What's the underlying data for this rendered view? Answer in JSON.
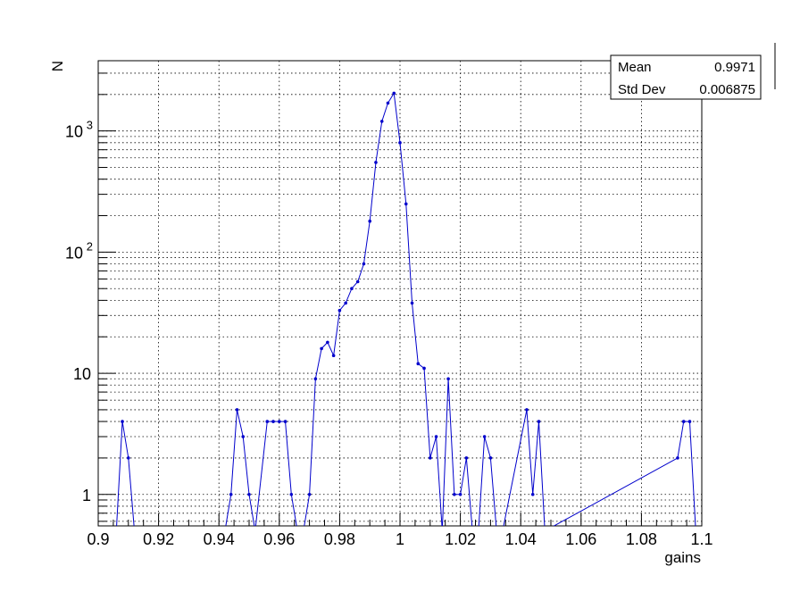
{
  "chart_data": {
    "type": "line",
    "title": "",
    "xlabel": "gains",
    "ylabel": "N",
    "xlim": [
      0.9,
      1.1
    ],
    "ylim": [
      0.55,
      3800
    ],
    "log_y": true,
    "grid": true,
    "x_ticks": [
      "0.9",
      "0.92",
      "0.94",
      "0.96",
      "0.98",
      "1",
      "1.02",
      "1.04",
      "1.06",
      "1.08",
      "1.1"
    ],
    "y_ticks": [
      {
        "value": 1,
        "label": "1"
      },
      {
        "value": 10,
        "label": "10"
      },
      {
        "value": 100,
        "label": "10",
        "exp": "2"
      },
      {
        "value": 1000,
        "label": "10",
        "exp": "3"
      }
    ],
    "series": [
      {
        "color": "#0000cc",
        "x": [
          0.906,
          0.908,
          0.91,
          0.912,
          0.942,
          0.944,
          0.946,
          0.948,
          0.95,
          0.952,
          0.956,
          0.958,
          0.96,
          0.962,
          0.964,
          0.966,
          0.968,
          0.97,
          0.972,
          0.974,
          0.976,
          0.978,
          0.98,
          0.982,
          0.984,
          0.986,
          0.988,
          0.99,
          0.992,
          0.994,
          0.996,
          0.998,
          1.0,
          1.002,
          1.004,
          1.006,
          1.008,
          1.01,
          1.012,
          1.014,
          1.016,
          1.018,
          1.02,
          1.022,
          1.024,
          1.026,
          1.028,
          1.03,
          1.032,
          1.034,
          1.042,
          1.044,
          1.046,
          1.048,
          1.092,
          1.094,
          1.096,
          1.098
        ],
        "y": [
          0.5,
          4,
          2,
          0.5,
          0.5,
          1,
          5,
          3,
          1,
          0.5,
          4,
          4,
          4,
          4,
          1,
          0.5,
          0.5,
          1,
          9,
          16,
          18,
          14,
          33,
          38,
          50,
          57,
          80,
          180,
          550,
          1200,
          1700,
          2050,
          800,
          250,
          38,
          12,
          11,
          2,
          3,
          0.5,
          9,
          1,
          1,
          2,
          0.5,
          0.5,
          3,
          2,
          0.5,
          0.5,
          5,
          1,
          4,
          0.5,
          2,
          4,
          4,
          0.5
        ]
      }
    ]
  },
  "stats": {
    "mean_label": "Mean",
    "mean_value": "0.9971",
    "std_label": "Std Dev",
    "std_value": "0.006875"
  }
}
